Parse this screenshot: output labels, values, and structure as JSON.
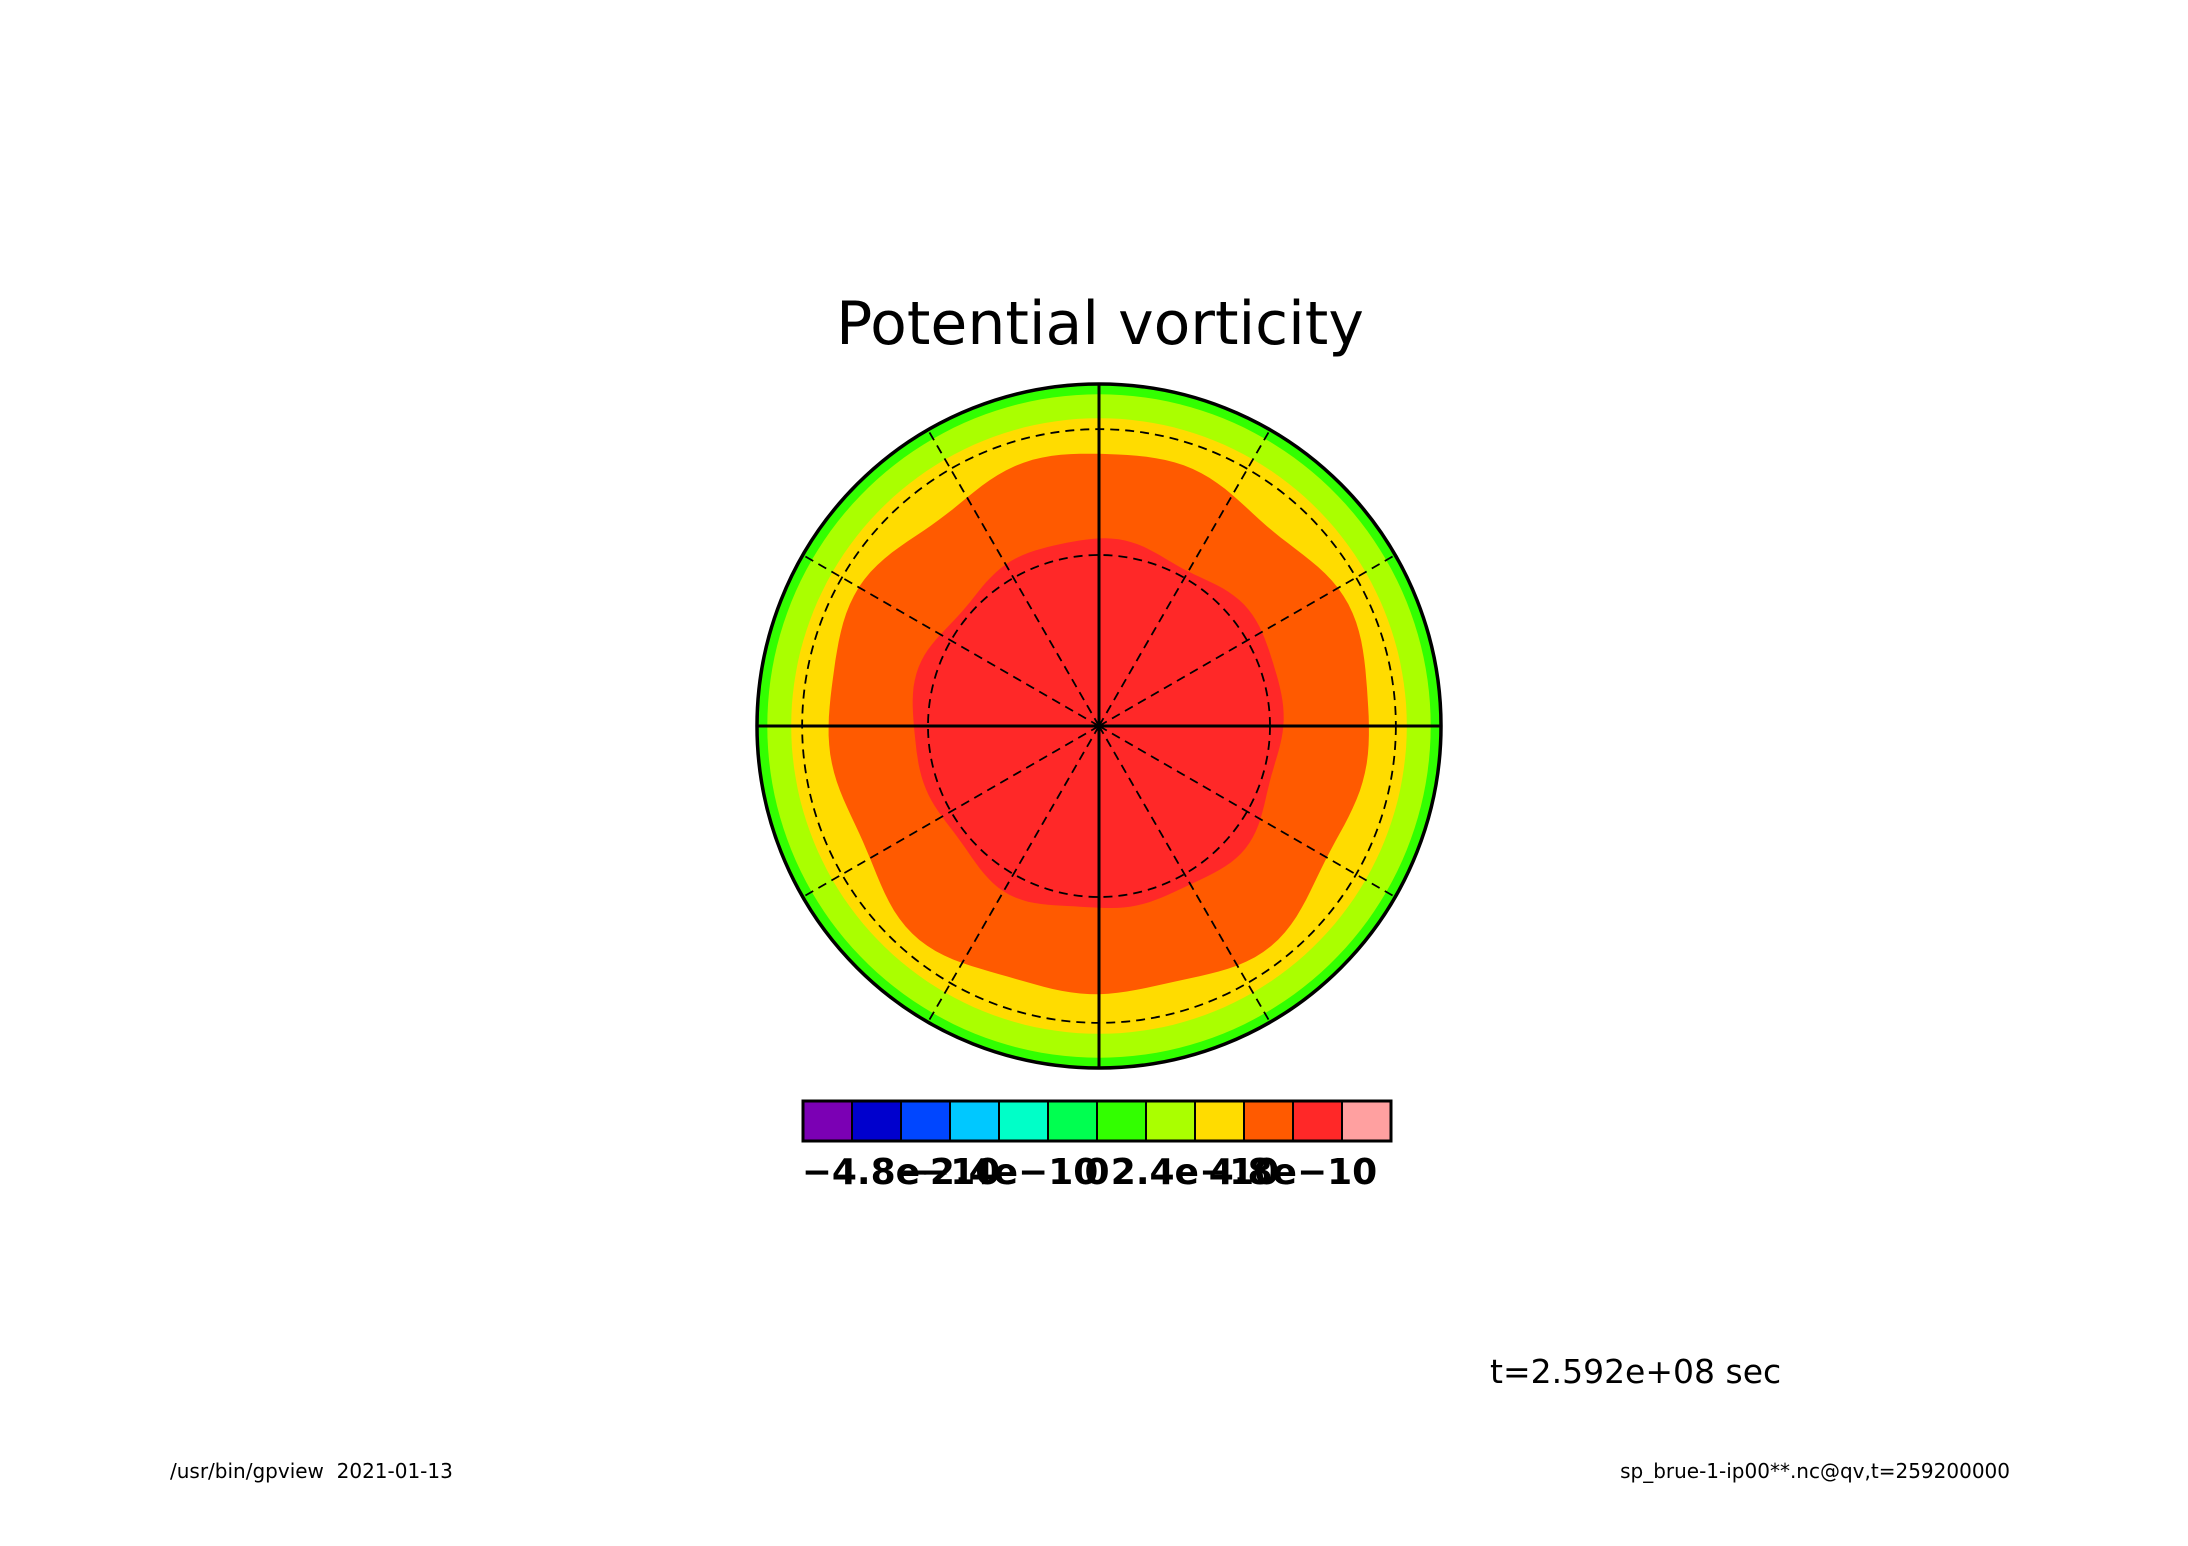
{
  "chart_data": {
    "type": "heatmap",
    "projection": "polar stereographic",
    "title": "Potential vorticity",
    "variable": "qv",
    "time_label": "t=2.592e+08 sec",
    "colorbar": {
      "colors": [
        "#7b00b4",
        "#0000cd",
        "#0046ff",
        "#00c8ff",
        "#00ffc8",
        "#00ff50",
        "#32ff00",
        "#aaff00",
        "#ffdc00",
        "#ff5a00",
        "#ff2828",
        "#ffa0a0"
      ],
      "tick_labels": [
        "-4.8e-10",
        "-2.4e-10",
        "0",
        "2.4e-10",
        "4.8e-10"
      ],
      "tick_values": [
        -4.8e-10,
        -2.4e-10,
        0,
        2.4e-10,
        4.8e-10
      ],
      "range": [
        -7.2e-10,
        7.2e-10
      ],
      "step": 1.2e-10
    },
    "rings": [
      {
        "level_index": 6,
        "color": "#32ff00",
        "radius_frac": 1.0
      },
      {
        "level_index": 7,
        "color": "#aaff00",
        "radius_frac": 0.97
      },
      {
        "level_index": 8,
        "color": "#ffdc00",
        "radius_frac": 0.9
      },
      {
        "level_index": 9,
        "color": "#ff5a00",
        "radius_frac": 0.79
      },
      {
        "level_index": 10,
        "color": "#ff2828",
        "radius_frac": 0.54
      }
    ],
    "grid": {
      "meridians_deg": 30,
      "parallels_frac": [
        0.5,
        0.868
      ],
      "major_lines": "0/90/180/270"
    }
  },
  "footer": {
    "left": "/usr/bin/gpview  2021-01-13",
    "right": "sp_brue-1-ip00**.nc@qv,t=259200000"
  }
}
